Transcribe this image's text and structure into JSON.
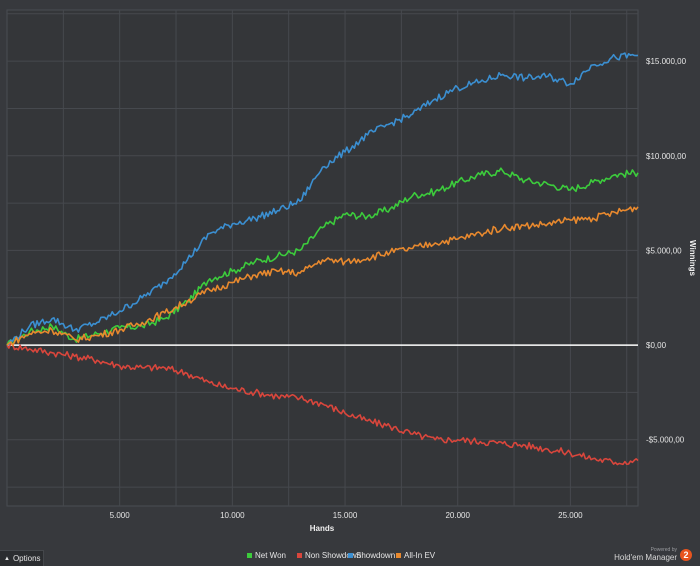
{
  "chart_data": {
    "type": "line",
    "title": "",
    "xlabel": "Hands",
    "ylabel": "Winnings",
    "xlim": [
      0,
      28000
    ],
    "ylim": [
      -8500,
      17700
    ],
    "x_ticks": [
      5000,
      10000,
      15000,
      20000,
      25000
    ],
    "x_tick_labels": [
      "5.000",
      "10.000",
      "15.000",
      "20.000",
      "25.000"
    ],
    "y_ticks": [
      -5000,
      0,
      5000,
      10000,
      15000
    ],
    "y_tick_labels": [
      "-$5.000,00",
      "$0,00",
      "$5.000,00",
      "$10.000,00",
      "$15.000,00"
    ],
    "grid": true,
    "legend_position": "bottom",
    "x": [
      0,
      1000,
      2000,
      3000,
      4000,
      5000,
      6000,
      7000,
      8000,
      9000,
      10000,
      11000,
      12000,
      13000,
      14000,
      15000,
      16000,
      17000,
      18000,
      19000,
      20000,
      21000,
      22000,
      23000,
      24000,
      25000,
      26000,
      27000,
      28000
    ],
    "series": [
      {
        "name": "Net Won",
        "color": "#3ccc3c",
        "values": [
          0,
          700,
          1000,
          300,
          600,
          900,
          1000,
          1400,
          2300,
          3500,
          3900,
          4400,
          4700,
          5000,
          6200,
          6900,
          6800,
          7200,
          7900,
          8100,
          8600,
          9000,
          9200,
          8700,
          8500,
          8200,
          8600,
          9000,
          9100
        ]
      },
      {
        "name": "Non Showdown",
        "color": "#d9463c",
        "values": [
          0,
          -200,
          -400,
          -600,
          -800,
          -1100,
          -1200,
          -1200,
          -1500,
          -2000,
          -2300,
          -2500,
          -2700,
          -2800,
          -3100,
          -3600,
          -4000,
          -4300,
          -4700,
          -5000,
          -5000,
          -5100,
          -5200,
          -5300,
          -5500,
          -5700,
          -6000,
          -6200,
          -6100
        ]
      },
      {
        "name": "Showdown",
        "color": "#3b8fd1",
        "values": [
          0,
          1000,
          1400,
          800,
          1200,
          1800,
          2500,
          3300,
          4500,
          5900,
          6400,
          6700,
          7100,
          7600,
          9400,
          10200,
          11100,
          11700,
          12200,
          13000,
          13600,
          13900,
          14300,
          14100,
          14200,
          13800,
          14800,
          15200,
          15300
        ]
      },
      {
        "name": "All-In EV",
        "color": "#e8892e",
        "values": [
          0,
          600,
          800,
          300,
          500,
          800,
          1200,
          1700,
          2300,
          2900,
          3300,
          3700,
          3900,
          3800,
          4500,
          4400,
          4600,
          4900,
          5100,
          5400,
          5600,
          5900,
          6200,
          6300,
          6400,
          6600,
          6700,
          7000,
          7300
        ]
      }
    ]
  },
  "ui": {
    "options_label": "Options",
    "powered_by": "Powered by",
    "brand_name": "Hold'em Manager",
    "logo_digit": "2"
  }
}
